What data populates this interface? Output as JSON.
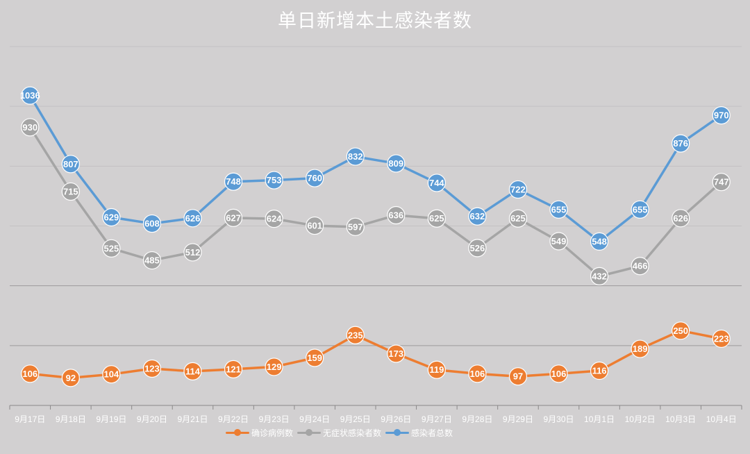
{
  "chart_data": {
    "type": "line",
    "title": "单日新增本土感染者数",
    "categories": [
      "9月17日",
      "9月18日",
      "9月19日",
      "9月20日",
      "9月21日",
      "9月22日",
      "9月23日",
      "9月24日",
      "9月25日",
      "9月26日",
      "9月27日",
      "9月28日",
      "9月29日",
      "9月30日",
      "10月1日",
      "10月2日",
      "10月3日",
      "10月4日"
    ],
    "series": [
      {
        "name": "确诊病例数",
        "color": "#ed7d31",
        "values": [
          106,
          92,
          104,
          123,
          114,
          121,
          129,
          159,
          235,
          173,
          119,
          106,
          97,
          106,
          116,
          189,
          250,
          223
        ]
      },
      {
        "name": "无症状感染者数",
        "color": "#a5a5a5",
        "values": [
          930,
          715,
          525,
          485,
          512,
          627,
          624,
          601,
          597,
          636,
          625,
          526,
          625,
          549,
          432,
          466,
          626,
          747
        ]
      },
      {
        "name": "感染者总数",
        "color": "#5b9bd5",
        "values": [
          1036,
          807,
          629,
          608,
          626,
          748,
          753,
          760,
          832,
          809,
          744,
          632,
          722,
          655,
          548,
          655,
          876,
          970
        ]
      }
    ],
    "ylim": [
      0,
      1200
    ],
    "grid": true,
    "legend_position": "bottom",
    "data_labels": true
  }
}
